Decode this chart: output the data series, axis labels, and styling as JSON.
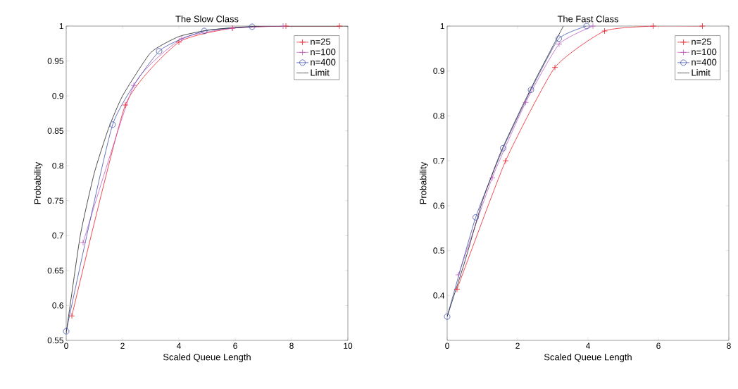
{
  "chart_data": [
    {
      "type": "line",
      "title": "The Slow Class",
      "xlabel": "Scaled Queue Length",
      "ylabel": "Probability",
      "xlim": [
        0,
        10
      ],
      "ylim": [
        0.55,
        1
      ],
      "xticks": [
        0,
        2,
        4,
        6,
        8,
        10
      ],
      "yticks": [
        0.55,
        0.6,
        0.65,
        0.7,
        0.75,
        0.8,
        0.85,
        0.9,
        0.95,
        1
      ],
      "legend": "top right",
      "grid": false,
      "series": [
        {
          "name": "n=25",
          "color": "#e8202a",
          "marker": "cross",
          "x": [
            0.2,
            2.1,
            4.0,
            5.9,
            7.8,
            9.7
          ],
          "values": [
            0.585,
            0.887,
            0.977,
            0.997,
            1,
            1
          ]
        },
        {
          "name": "n=100",
          "color": "#c060c0",
          "marker": "cross",
          "x": [
            0.6,
            2.4,
            4.1,
            5.9,
            7.7
          ],
          "values": [
            0.69,
            0.915,
            0.982,
            0.997,
            1
          ]
        },
        {
          "name": "n=400",
          "color": "#4050b0",
          "marker": "circle",
          "x": [
            0,
            1.65,
            3.3,
            4.9,
            6.6
          ],
          "values": [
            0.563,
            0.859,
            0.964,
            0.993,
            0.999
          ]
        },
        {
          "name": "Limit",
          "color": "#202020",
          "marker": "none",
          "x": [
            0,
            0.5,
            1,
            1.5,
            2,
            3,
            4,
            5,
            6,
            7,
            8,
            10
          ],
          "values": [
            0.56,
            0.7,
            0.79,
            0.853,
            0.9,
            0.962,
            0.985,
            0.994,
            0.998,
            1,
            1,
            1
          ]
        }
      ]
    },
    {
      "type": "line",
      "title": "The Fast Class",
      "xlabel": "Scaled Queue Length",
      "ylabel": "Probability",
      "xlim": [
        0,
        8
      ],
      "ylim": [
        0.3,
        1
      ],
      "xticks": [
        0,
        2,
        4,
        6,
        8
      ],
      "yticks": [
        0.4,
        0.5,
        0.6,
        0.7,
        0.8,
        0.9,
        1
      ],
      "legend": "top right",
      "grid": false,
      "series": [
        {
          "name": "n=25",
          "color": "#e8202a",
          "marker": "cross",
          "x": [
            0.28,
            1.66,
            3.06,
            4.47,
            5.85,
            7.25
          ],
          "values": [
            0.414,
            0.7,
            0.908,
            0.989,
            1,
            1
          ]
        },
        {
          "name": "n=100",
          "color": "#c060c0",
          "marker": "cross",
          "x": [
            0.32,
            1.28,
            2.23,
            3.18,
            4.14
          ],
          "values": [
            0.446,
            0.662,
            0.83,
            0.96,
            1
          ]
        },
        {
          "name": "n=400",
          "color": "#4050b0",
          "marker": "circle",
          "x": [
            0,
            0.81,
            1.59,
            2.38,
            3.17,
            3.96
          ],
          "values": [
            0.353,
            0.574,
            0.728,
            0.858,
            0.972,
            1
          ]
        },
        {
          "name": "Limit",
          "color": "#202020",
          "marker": "none",
          "x": [
            0,
            0.5,
            1,
            1.5,
            2,
            2.5,
            3,
            3.3
          ],
          "values": [
            0.353,
            0.475,
            0.61,
            0.715,
            0.8,
            0.88,
            0.955,
            1
          ]
        }
      ]
    }
  ]
}
